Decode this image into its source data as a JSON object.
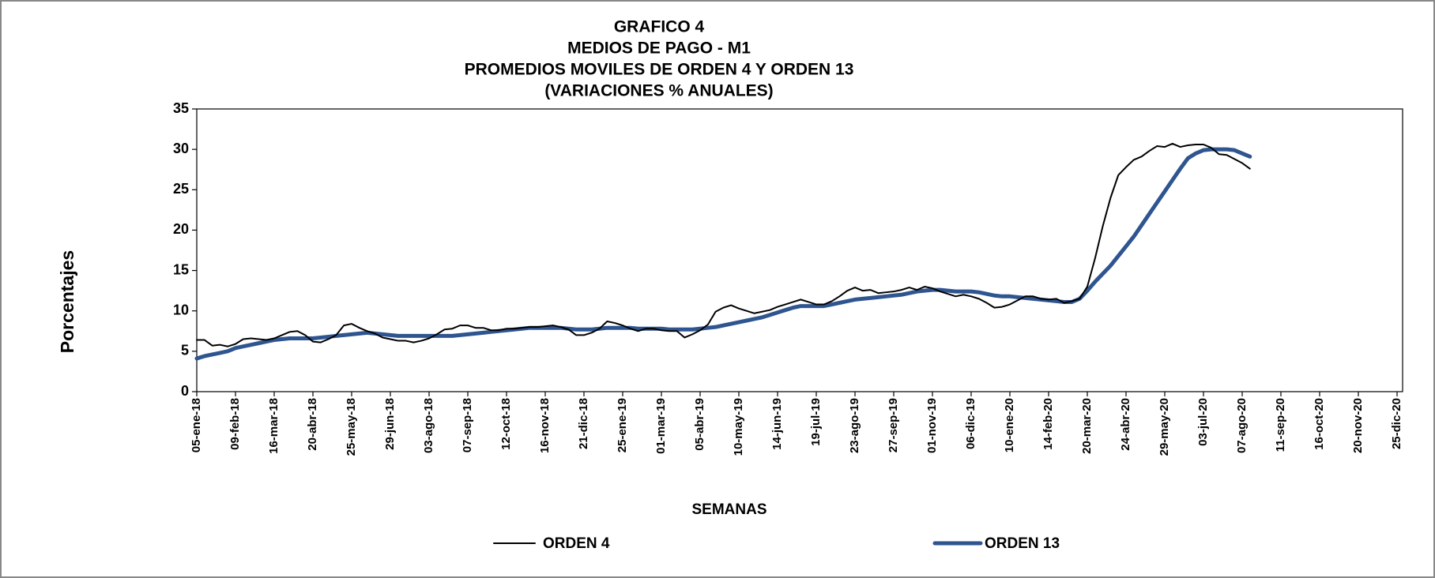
{
  "chart_data": {
    "type": "line",
    "title": [
      "GRAFICO 4",
      "MEDIOS DE PAGO - M1",
      "PROMEDIOS MOVILES DE ORDEN 4 Y ORDEN 13",
      "(VARIACIONES  % ANUALES)"
    ],
    "y_label": "Porcentajes",
    "x_label": "SEMANAS",
    "categories": [
      "05-ene-18",
      null,
      null,
      null,
      null,
      "09-feb-18",
      null,
      null,
      null,
      null,
      "16-mar-18",
      null,
      null,
      null,
      null,
      "20-abr-18",
      null,
      null,
      null,
      null,
      "25-may-18",
      null,
      null,
      null,
      null,
      "29-jun-18",
      null,
      null,
      null,
      null,
      "03-ago-18",
      null,
      null,
      null,
      null,
      "07-sep-18",
      null,
      null,
      null,
      null,
      "12-oct-18",
      null,
      null,
      null,
      null,
      "16-nov-18",
      null,
      null,
      null,
      null,
      "21-dic-18",
      null,
      null,
      null,
      null,
      "25-ene-19",
      null,
      null,
      null,
      null,
      "01-mar-19",
      null,
      null,
      null,
      null,
      "05-abr-19",
      null,
      null,
      null,
      null,
      "10-may-19",
      null,
      null,
      null,
      null,
      "14-jun-19",
      null,
      null,
      null,
      null,
      "19-jul-19",
      null,
      null,
      null,
      null,
      "23-ago-19",
      null,
      null,
      null,
      null,
      "27-sep-19",
      null,
      null,
      null,
      null,
      "01-nov-19",
      null,
      null,
      null,
      null,
      "06-dic-19",
      null,
      null,
      null,
      null,
      "10-ene-20",
      null,
      null,
      null,
      null,
      "14-feb-20",
      null,
      null,
      null,
      null,
      "20-mar-20",
      null,
      null,
      null,
      null,
      "24-abr-20",
      null,
      null,
      null,
      null,
      "29-may-20",
      null,
      null,
      null,
      null,
      "03-jul-20",
      null,
      null,
      null,
      null,
      "07-ago-20",
      null,
      null,
      null,
      null,
      "11-sep-20",
      null,
      null,
      null,
      null,
      "16-oct-20",
      null,
      null,
      null,
      null,
      "20-nov-20",
      null,
      null,
      null,
      null,
      "25-dic-20"
    ],
    "series": [
      {
        "name": "ORDEN 4",
        "color": "#000000",
        "width": 2,
        "values": [
          6.4,
          6.4,
          5.7,
          5.8,
          5.6,
          5.9,
          6.5,
          6.6,
          6.5,
          6.4,
          6.6,
          7.0,
          7.4,
          7.5,
          7.0,
          6.2,
          6.1,
          6.5,
          7.0,
          8.2,
          8.4,
          7.9,
          7.5,
          7.2,
          6.7,
          6.5,
          6.3,
          6.3,
          6.1,
          6.3,
          6.6,
          7.1,
          7.7,
          7.8,
          8.2,
          8.2,
          7.9,
          7.9,
          7.6,
          7.6,
          7.8,
          7.8,
          7.9,
          8.0,
          8.0,
          8.1,
          8.2,
          8.0,
          7.7,
          7.0,
          7.0,
          7.3,
          7.8,
          8.7,
          8.5,
          8.2,
          7.8,
          7.5,
          7.8,
          7.8,
          7.6,
          7.5,
          7.5,
          6.7,
          7.1,
          7.6,
          8.3,
          9.9,
          10.4,
          10.7,
          10.3,
          10.0,
          9.7,
          9.9,
          10.1,
          10.5,
          10.8,
          11.1,
          11.4,
          11.1,
          10.8,
          10.8,
          11.2,
          11.8,
          12.5,
          12.9,
          12.5,
          12.6,
          12.2,
          12.3,
          12.4,
          12.6,
          12.9,
          12.6,
          13.0,
          12.8,
          12.4,
          12.1,
          11.8,
          12.0,
          11.8,
          11.5,
          11.0,
          10.4,
          10.5,
          10.8,
          11.3,
          11.8,
          11.8,
          11.5,
          11.4,
          11.5,
          11.0,
          11.2,
          11.5,
          13.0,
          16.5,
          20.5,
          24.0,
          26.8,
          27.8,
          28.7,
          29.1,
          29.8,
          30.4,
          30.3,
          30.7,
          30.3,
          30.5,
          30.6,
          30.6,
          30.2,
          29.4,
          29.3,
          28.8,
          28.3,
          27.6,
          null,
          null,
          null,
          null,
          null,
          null,
          null,
          null,
          null,
          null,
          null,
          null,
          null,
          null,
          null,
          null,
          null,
          null,
          null
        ]
      },
      {
        "name": "ORDEN 13",
        "color": "#2e5590",
        "width": 5,
        "values": [
          4.1,
          4.4,
          4.6,
          4.8,
          5.0,
          5.4,
          5.6,
          5.8,
          6.0,
          6.2,
          6.4,
          6.5,
          6.6,
          6.6,
          6.6,
          6.6,
          6.7,
          6.8,
          6.9,
          7.0,
          7.1,
          7.2,
          7.3,
          7.2,
          7.1,
          7.0,
          6.9,
          6.9,
          6.9,
          6.9,
          6.9,
          6.9,
          6.9,
          6.9,
          7.0,
          7.1,
          7.2,
          7.3,
          7.4,
          7.5,
          7.6,
          7.7,
          7.8,
          7.9,
          7.9,
          7.9,
          7.9,
          7.9,
          7.8,
          7.7,
          7.7,
          7.7,
          7.8,
          7.9,
          7.9,
          7.9,
          7.9,
          7.8,
          7.8,
          7.8,
          7.8,
          7.7,
          7.7,
          7.7,
          7.7,
          7.8,
          7.9,
          8.0,
          8.2,
          8.4,
          8.6,
          8.8,
          9.0,
          9.2,
          9.5,
          9.8,
          10.1,
          10.4,
          10.6,
          10.6,
          10.6,
          10.6,
          10.8,
          11.0,
          11.2,
          11.4,
          11.5,
          11.6,
          11.7,
          11.8,
          11.9,
          12.0,
          12.2,
          12.4,
          12.5,
          12.6,
          12.6,
          12.5,
          12.4,
          12.4,
          12.4,
          12.3,
          12.1,
          11.9,
          11.8,
          11.8,
          11.7,
          11.6,
          11.5,
          11.4,
          11.3,
          11.2,
          11.1,
          11.1,
          11.5,
          12.5,
          13.6,
          14.6,
          15.6,
          16.8,
          18.0,
          19.2,
          20.6,
          22.0,
          23.4,
          24.8,
          26.2,
          27.6,
          28.9,
          29.5,
          29.9,
          30.0,
          30.0,
          30.0,
          29.9,
          29.5,
          29.1,
          null,
          null,
          null,
          null,
          null,
          null,
          null,
          null,
          null,
          null,
          null,
          null,
          null,
          null,
          null,
          null,
          null,
          null,
          null
        ]
      }
    ],
    "ylim": [
      0,
      35
    ],
    "yticks": [
      0,
      5,
      10,
      15,
      20,
      25,
      30,
      35
    ],
    "grid": false
  }
}
